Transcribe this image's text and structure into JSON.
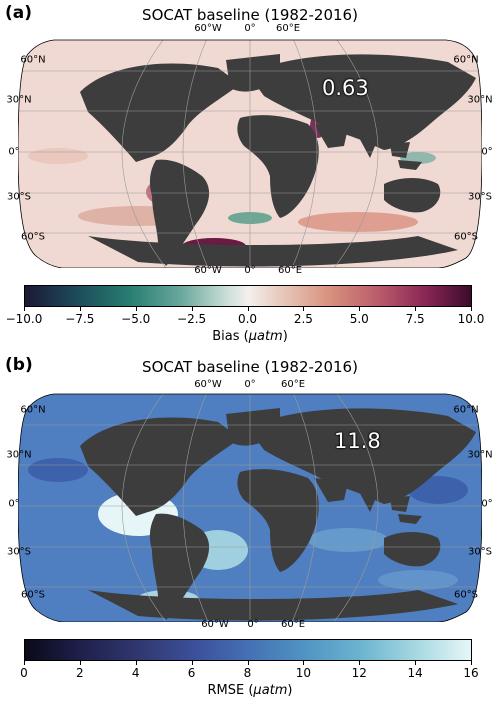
{
  "panel_a": {
    "label": "(a)",
    "title": "SOCAT baseline (1982-2016)",
    "stat": "0.63",
    "colorbar": {
      "label_prefix": "Bias (",
      "label_unit": "μatm",
      "label_suffix": ")",
      "min": -10,
      "max": 10,
      "ticks": [
        "−10.0",
        "−7.5",
        "−5.0",
        "−2.5",
        "0.0",
        "2.5",
        "5.0",
        "7.5",
        "10.0"
      ]
    }
  },
  "panel_b": {
    "label": "(b)",
    "title": "SOCAT baseline (1982-2016)",
    "stat": "11.8",
    "colorbar": {
      "label_prefix": "RMSE (",
      "label_unit": "μatm",
      "label_suffix": ")",
      "min": 0,
      "max": 16,
      "ticks": [
        "0",
        "2",
        "4",
        "6",
        "8",
        "10",
        "12",
        "14",
        "16"
      ]
    }
  },
  "graticule": {
    "lon_labels": [
      "60°W",
      "0°",
      "60°E"
    ],
    "lat_left": [
      "60°N",
      "30°N",
      "0°",
      "30°S",
      "60°S"
    ],
    "lat_right": [
      "60°N",
      "30°N",
      "0°",
      "30°S",
      "60°S"
    ]
  },
  "colors": {
    "land": "#3d3d3d",
    "ocean_a": "#f0d9d2",
    "ocean_b": "#4f7fc0",
    "graticule": "#9a9a9a"
  }
}
